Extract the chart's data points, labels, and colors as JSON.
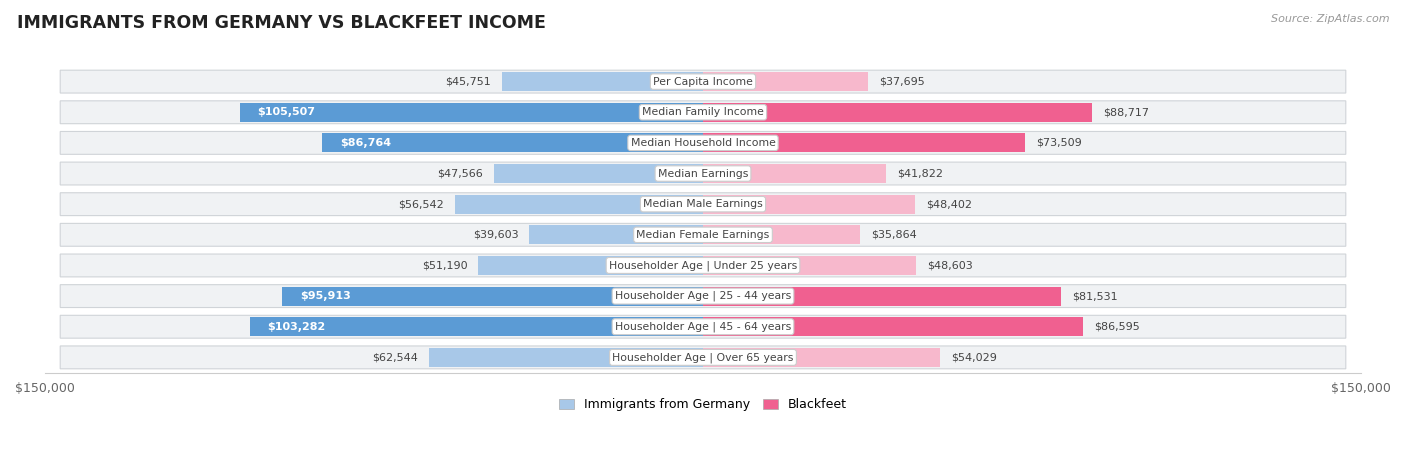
{
  "title": "IMMIGRANTS FROM GERMANY VS BLACKFEET INCOME",
  "source": "Source: ZipAtlas.com",
  "categories": [
    "Per Capita Income",
    "Median Family Income",
    "Median Household Income",
    "Median Earnings",
    "Median Male Earnings",
    "Median Female Earnings",
    "Householder Age | Under 25 years",
    "Householder Age | 25 - 44 years",
    "Householder Age | 45 - 64 years",
    "Householder Age | Over 65 years"
  ],
  "germany_values": [
    45751,
    105507,
    86764,
    47566,
    56542,
    39603,
    51190,
    95913,
    103282,
    62544
  ],
  "blackfeet_values": [
    37695,
    88717,
    73509,
    41822,
    48402,
    35864,
    48603,
    81531,
    86595,
    54029
  ],
  "germany_color_light": "#a8c8e8",
  "germany_color_dark": "#5b9bd5",
  "blackfeet_color_light": "#f7b8cc",
  "blackfeet_color_dark": "#f06090",
  "germany_threshold": 70000,
  "blackfeet_threshold": 60000,
  "max_value": 150000,
  "row_bg_color": "#f0f0f0",
  "row_border_color": "#d8d8d8",
  "center_label_bg": "#ffffff",
  "center_label_color": "#555555",
  "legend_germany": "Immigrants from Germany",
  "legend_blackfeet": "Blackfeet",
  "white_label_threshold": 65000
}
